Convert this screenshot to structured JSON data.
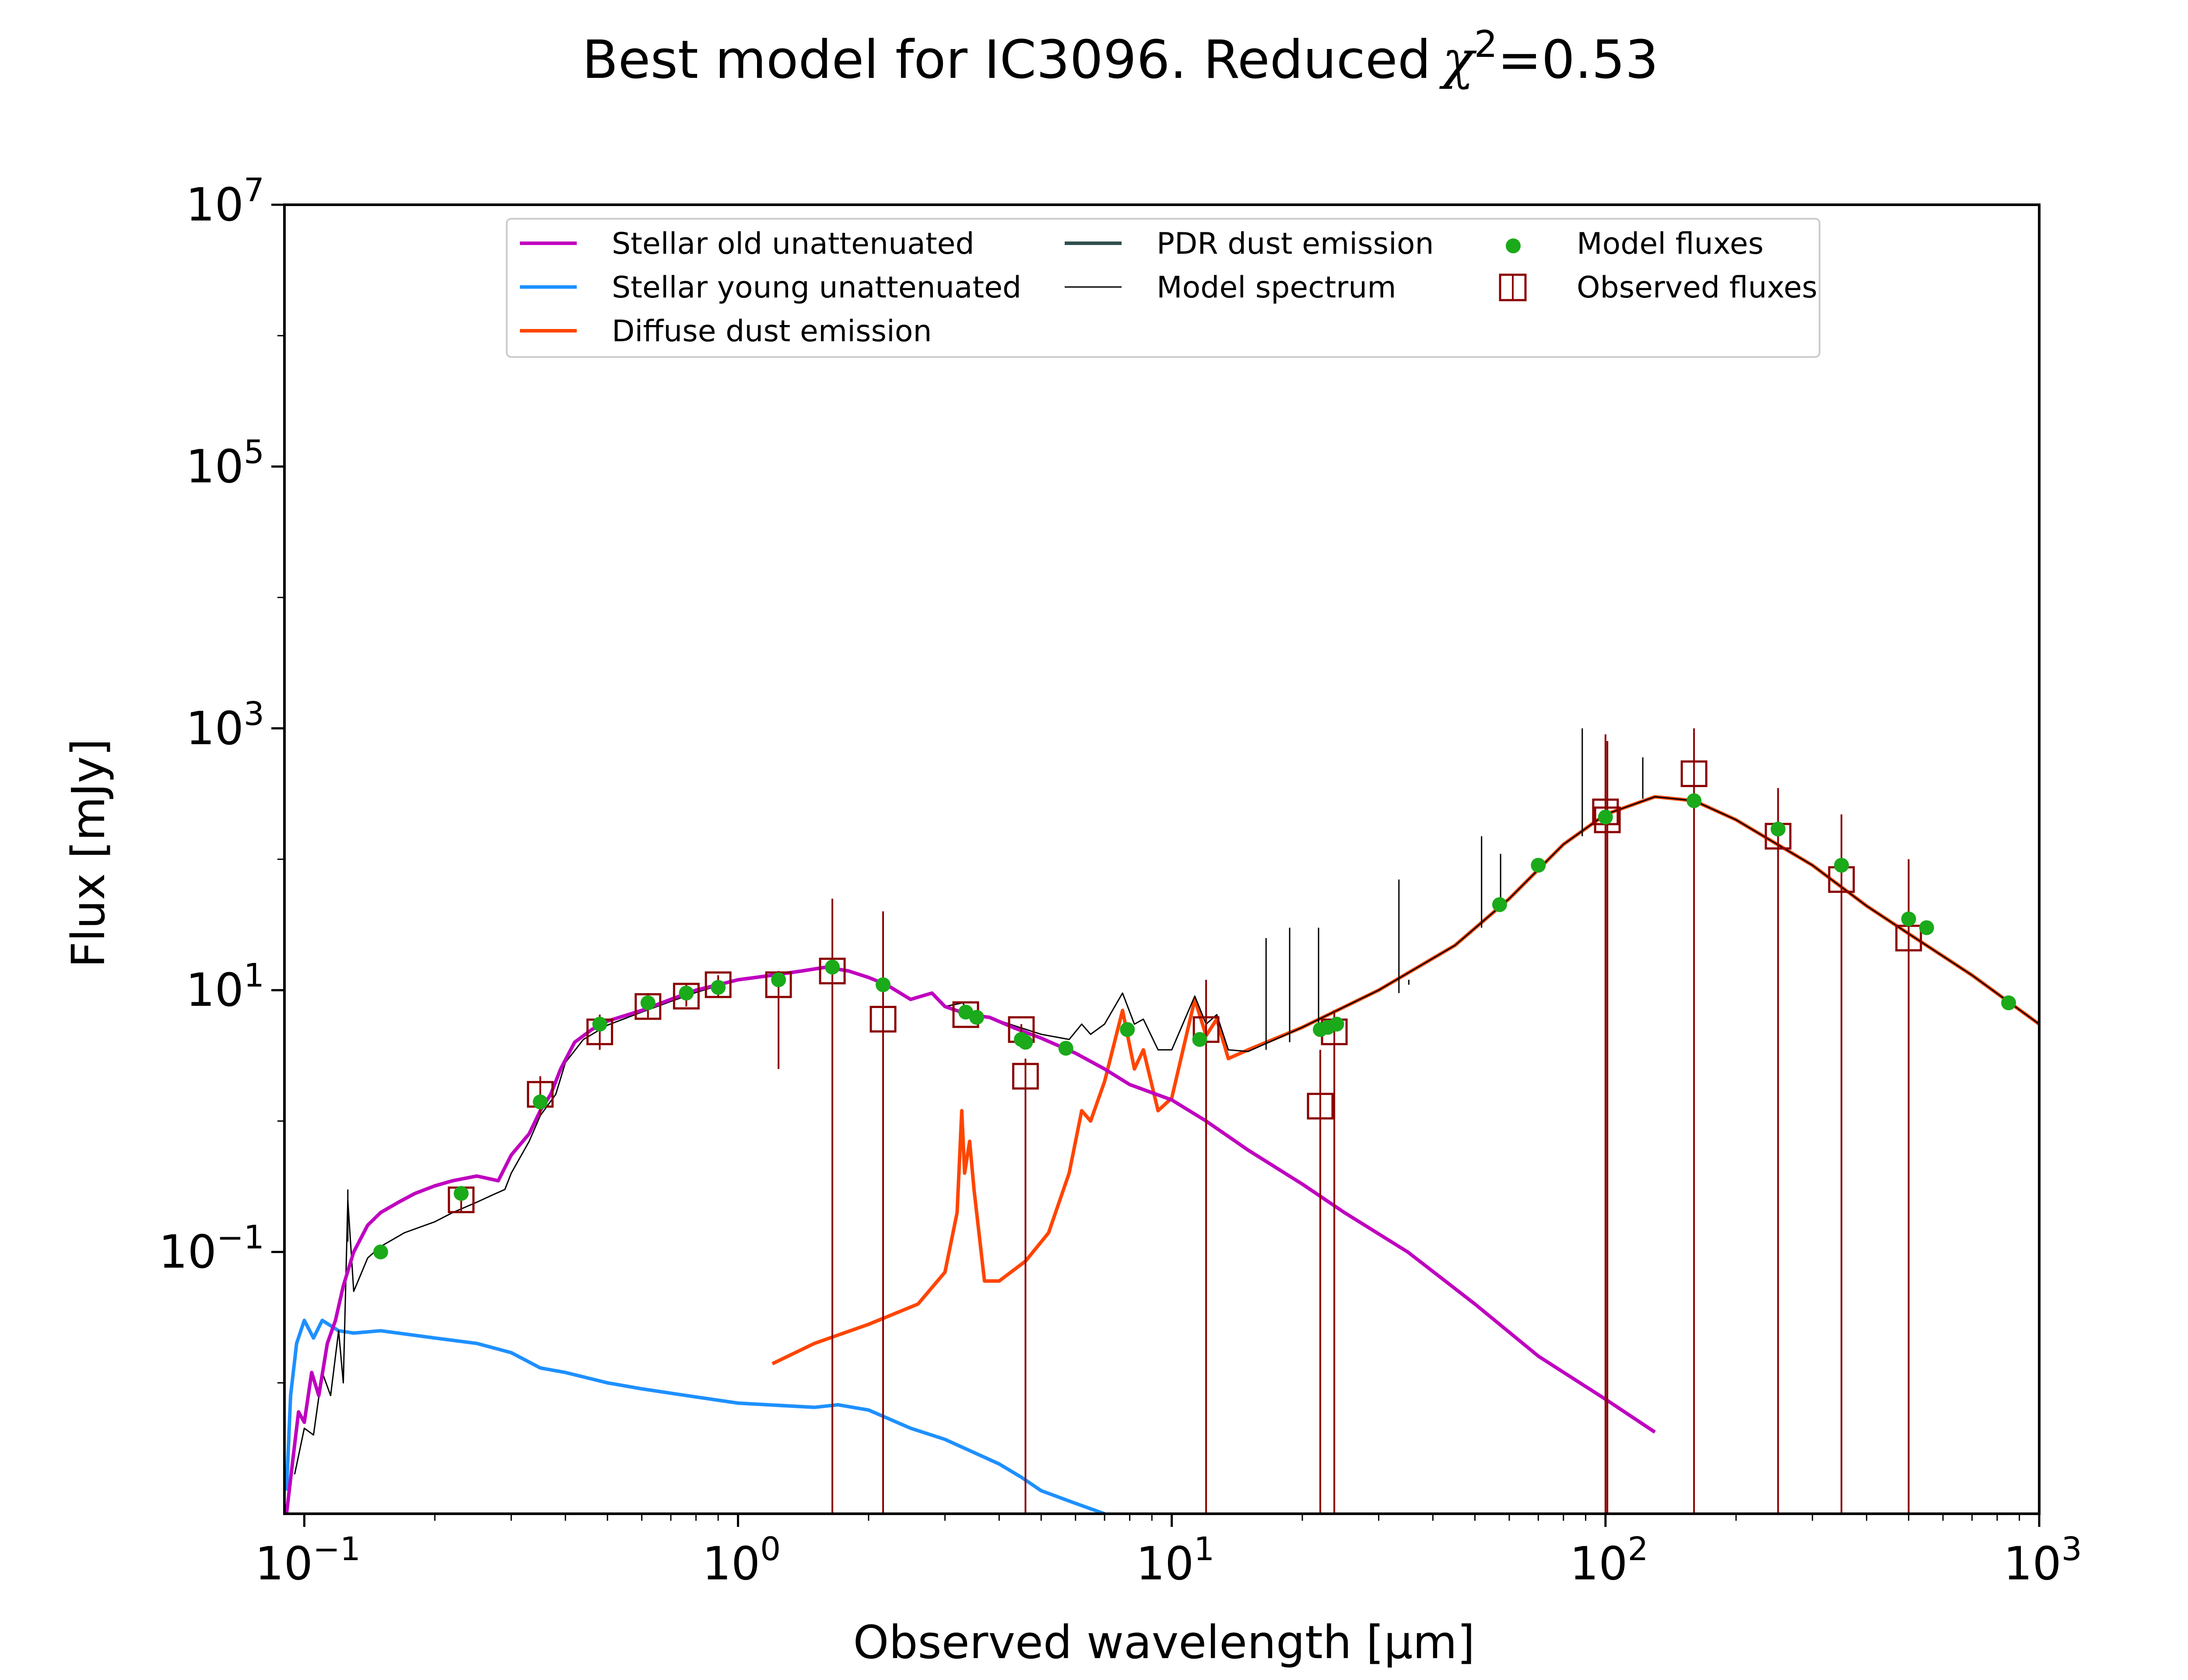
{
  "chart_data": {
    "type": "line",
    "title": "Best model for IC3096. Reduced",
    "title_chi": "χ",
    "title_sup": "2",
    "title_value": "=0.53",
    "xlabel": "Observed wavelength [μm]",
    "ylabel": "Flux [mJy]",
    "x_scale": "log",
    "y_scale": "log",
    "xlim": [
      0.09,
      1000
    ],
    "ylim": [
      0.001,
      10000000
    ],
    "grid": false,
    "legend_placement": "top-center",
    "x_ticks": [
      {
        "value": 0.1,
        "base": "10",
        "exp": "−1"
      },
      {
        "value": 1,
        "base": "10",
        "exp": "0"
      },
      {
        "value": 10,
        "base": "10",
        "exp": "1"
      },
      {
        "value": 100,
        "base": "10",
        "exp": "2"
      },
      {
        "value": 1000,
        "base": "10",
        "exp": "3"
      }
    ],
    "y_ticks": [
      {
        "value": 0.1,
        "base": "10",
        "exp": "−1"
      },
      {
        "value": 10,
        "base": "10",
        "exp": "1"
      },
      {
        "value": 1000,
        "base": "10",
        "exp": "3"
      },
      {
        "value": 100000,
        "base": "10",
        "exp": "5"
      },
      {
        "value": 10000000,
        "base": "10",
        "exp": "7"
      }
    ],
    "legend": {
      "columns": [
        [
          {
            "label": "Stellar old unattenuated",
            "kind": "line",
            "color": "#BF00BF"
          },
          {
            "label": "Stellar young unattenuated",
            "kind": "line",
            "color": "#1E90FF"
          },
          {
            "label": "Diffuse dust emission",
            "kind": "line",
            "color": "#FF4500"
          }
        ],
        [
          {
            "label": "PDR dust emission",
            "kind": "line",
            "color": "#2F4F4F"
          },
          {
            "label": "Model spectrum",
            "kind": "thinline",
            "color": "#000000"
          }
        ],
        [
          {
            "label": "Model fluxes",
            "kind": "dot",
            "color": "#1AAA1A"
          },
          {
            "label": "Observed fluxes",
            "kind": "square",
            "color": "#8B0000"
          }
        ]
      ]
    },
    "series": [
      {
        "name": "Stellar old unattenuated",
        "color": "#BF00BF",
        "width": 8,
        "points": [
          [
            0.091,
            0.001
          ],
          [
            0.094,
            0.0025
          ],
          [
            0.097,
            0.006
          ],
          [
            0.1,
            0.005
          ],
          [
            0.104,
            0.012
          ],
          [
            0.108,
            0.008
          ],
          [
            0.113,
            0.02
          ],
          [
            0.118,
            0.03
          ],
          [
            0.123,
            0.055
          ],
          [
            0.13,
            0.1
          ],
          [
            0.14,
            0.16
          ],
          [
            0.15,
            0.2
          ],
          [
            0.165,
            0.24
          ],
          [
            0.18,
            0.28
          ],
          [
            0.2,
            0.32
          ],
          [
            0.22,
            0.35
          ],
          [
            0.25,
            0.38
          ],
          [
            0.28,
            0.35
          ],
          [
            0.3,
            0.55
          ],
          [
            0.33,
            0.8
          ],
          [
            0.35,
            1.2
          ],
          [
            0.37,
            1.6
          ],
          [
            0.39,
            2.5
          ],
          [
            0.42,
            4.0
          ],
          [
            0.46,
            5.0
          ],
          [
            0.5,
            5.8
          ],
          [
            0.6,
            7.0
          ],
          [
            0.7,
            8.5
          ],
          [
            0.8,
            10
          ],
          [
            0.9,
            11
          ],
          [
            1.0,
            12
          ],
          [
            1.2,
            13
          ],
          [
            1.4,
            14
          ],
          [
            1.6,
            15
          ],
          [
            1.8,
            14
          ],
          [
            2.0,
            12.5
          ],
          [
            2.2,
            11
          ],
          [
            2.5,
            8.5
          ],
          [
            2.8,
            9.5
          ],
          [
            3.0,
            7.5
          ],
          [
            3.4,
            6.5
          ],
          [
            3.8,
            6.2
          ],
          [
            4.3,
            5.2
          ],
          [
            5.0,
            4.3
          ],
          [
            6.0,
            3.3
          ],
          [
            7.0,
            2.5
          ],
          [
            8.0,
            1.9
          ],
          [
            10,
            1.45
          ],
          [
            12,
            1.0
          ],
          [
            15,
            0.6
          ],
          [
            20,
            0.33
          ],
          [
            25,
            0.2
          ],
          [
            35,
            0.1
          ],
          [
            50,
            0.04
          ],
          [
            70,
            0.016
          ],
          [
            100,
            0.0075
          ],
          [
            130,
            0.0042
          ]
        ]
      },
      {
        "name": "Stellar young unattenuated",
        "color": "#1E90FF",
        "width": 8,
        "points": [
          [
            0.091,
            0.0015
          ],
          [
            0.093,
            0.008
          ],
          [
            0.096,
            0.02
          ],
          [
            0.1,
            0.03
          ],
          [
            0.105,
            0.022
          ],
          [
            0.11,
            0.03
          ],
          [
            0.12,
            0.025
          ],
          [
            0.13,
            0.024
          ],
          [
            0.15,
            0.025
          ],
          [
            0.2,
            0.022
          ],
          [
            0.25,
            0.02
          ],
          [
            0.3,
            0.017
          ],
          [
            0.35,
            0.013
          ],
          [
            0.4,
            0.012
          ],
          [
            0.5,
            0.01
          ],
          [
            0.6,
            0.009
          ],
          [
            0.8,
            0.0078
          ],
          [
            1.0,
            0.007
          ],
          [
            1.5,
            0.0065
          ],
          [
            1.7,
            0.0068
          ],
          [
            2.0,
            0.0062
          ],
          [
            2.5,
            0.0045
          ],
          [
            3.0,
            0.0037
          ],
          [
            4.0,
            0.0024
          ],
          [
            4.5,
            0.0019
          ],
          [
            5.0,
            0.0015
          ],
          [
            6.0,
            0.0012
          ],
          [
            7.0,
            0.001
          ]
        ]
      },
      {
        "name": "Diffuse dust emission",
        "color": "#FF4500",
        "width": 8,
        "points": [
          [
            1.2,
            0.014
          ],
          [
            1.5,
            0.02
          ],
          [
            2.0,
            0.028
          ],
          [
            2.6,
            0.04
          ],
          [
            3.0,
            0.07
          ],
          [
            3.2,
            0.2
          ],
          [
            3.28,
            1.2
          ],
          [
            3.33,
            0.4
          ],
          [
            3.42,
            0.7
          ],
          [
            3.5,
            0.3
          ],
          [
            3.7,
            0.06
          ],
          [
            4.0,
            0.06
          ],
          [
            4.6,
            0.085
          ],
          [
            5.2,
            0.14
          ],
          [
            5.8,
            0.4
          ],
          [
            6.2,
            1.2
          ],
          [
            6.5,
            1.0
          ],
          [
            7.0,
            2.0
          ],
          [
            7.7,
            7.0
          ],
          [
            8.2,
            2.5
          ],
          [
            8.6,
            3.5
          ],
          [
            9.3,
            1.2
          ],
          [
            10,
            1.5
          ],
          [
            11.3,
            8.5
          ],
          [
            12,
            4.5
          ],
          [
            12.7,
            6.0
          ],
          [
            13.5,
            3.0
          ],
          [
            15,
            3.5
          ],
          [
            20,
            5.2
          ],
          [
            30,
            10
          ],
          [
            45,
            22
          ],
          [
            60,
            50
          ],
          [
            80,
            130
          ],
          [
            100,
            220
          ],
          [
            130,
            300
          ],
          [
            160,
            280
          ],
          [
            200,
            200
          ],
          [
            300,
            90
          ],
          [
            400,
            44
          ],
          [
            500,
            27
          ],
          [
            700,
            13
          ],
          [
            1000,
            5.5
          ]
        ]
      },
      {
        "name": "Model spectrum",
        "color": "#000000",
        "width": 3,
        "points": [
          [
            0.095,
            0.002
          ],
          [
            0.1,
            0.0045
          ],
          [
            0.105,
            0.004
          ],
          [
            0.11,
            0.012
          ],
          [
            0.115,
            0.008
          ],
          [
            0.12,
            0.025
          ],
          [
            0.123,
            0.01
          ],
          [
            0.126,
            0.25
          ],
          [
            0.13,
            0.05
          ],
          [
            0.14,
            0.09
          ],
          [
            0.15,
            0.11
          ],
          [
            0.17,
            0.14
          ],
          [
            0.2,
            0.17
          ],
          [
            0.22,
            0.2
          ],
          [
            0.25,
            0.24
          ],
          [
            0.27,
            0.27
          ],
          [
            0.29,
            0.3
          ],
          [
            0.3,
            0.4
          ],
          [
            0.33,
            0.7
          ],
          [
            0.35,
            1.1
          ],
          [
            0.38,
            1.6
          ],
          [
            0.4,
            2.8
          ],
          [
            0.44,
            4.2
          ],
          [
            0.5,
            5.4
          ],
          [
            0.6,
            6.8
          ],
          [
            0.7,
            8.2
          ],
          [
            0.8,
            9.6
          ],
          [
            0.9,
            10.8
          ],
          [
            1.0,
            12
          ],
          [
            1.2,
            13
          ],
          [
            1.4,
            14
          ],
          [
            1.6,
            15
          ],
          [
            1.8,
            14
          ],
          [
            2.0,
            12.5
          ],
          [
            2.2,
            11
          ],
          [
            2.5,
            8.5
          ],
          [
            2.8,
            9.4
          ],
          [
            3.0,
            7.5
          ],
          [
            3.3,
            8.0
          ],
          [
            3.4,
            6.6
          ],
          [
            3.8,
            6.2
          ],
          [
            4.3,
            5.4
          ],
          [
            5.0,
            4.6
          ],
          [
            5.8,
            4.2
          ],
          [
            6.2,
            5.5
          ],
          [
            6.5,
            4.6
          ],
          [
            7.0,
            5.5
          ],
          [
            7.7,
            9.5
          ],
          [
            8.2,
            5.5
          ],
          [
            8.6,
            6.0
          ],
          [
            9.3,
            3.5
          ],
          [
            10,
            3.5
          ],
          [
            11.3,
            9.0
          ],
          [
            12,
            5.5
          ],
          [
            12.7,
            6.5
          ],
          [
            13.5,
            3.5
          ],
          [
            15,
            3.4
          ],
          [
            20,
            5.2
          ],
          [
            30,
            10
          ],
          [
            45,
            22
          ],
          [
            60,
            50
          ],
          [
            80,
            130
          ],
          [
            100,
            220
          ],
          [
            130,
            300
          ],
          [
            160,
            280
          ],
          [
            200,
            200
          ],
          [
            300,
            90
          ],
          [
            400,
            44
          ],
          [
            500,
            27
          ],
          [
            700,
            13
          ],
          [
            1000,
            5.5
          ]
        ]
      }
    ],
    "spectrum_spikes": [
      [
        0.126,
        0.12,
        0.3
      ],
      [
        16.5,
        3.5,
        25
      ],
      [
        18.7,
        4.0,
        30
      ],
      [
        21.8,
        4.7,
        30
      ],
      [
        33.4,
        9.5,
        70
      ],
      [
        35.2,
        11,
        12
      ],
      [
        51.8,
        30,
        150
      ],
      [
        57.3,
        45,
        110
      ],
      [
        88.4,
        150,
        1000
      ],
      [
        121.9,
        290,
        600
      ]
    ],
    "model_fluxes": [
      [
        0.15,
        0.1
      ],
      [
        0.23,
        0.28
      ],
      [
        0.35,
        1.4
      ],
      [
        0.48,
        5.5
      ],
      [
        0.62,
        8
      ],
      [
        0.76,
        9.5
      ],
      [
        0.9,
        10.5
      ],
      [
        1.24,
        12
      ],
      [
        1.65,
        15
      ],
      [
        2.16,
        11
      ],
      [
        3.35,
        6.8
      ],
      [
        3.55,
        6.2
      ],
      [
        4.5,
        4.2
      ],
      [
        4.6,
        4.0
      ],
      [
        5.7,
        3.6
      ],
      [
        7.9,
        5.0
      ],
      [
        11.6,
        4.2
      ],
      [
        22,
        5.0
      ],
      [
        22.9,
        5.2
      ],
      [
        24,
        5.5
      ],
      [
        57,
        45
      ],
      [
        70,
        90
      ],
      [
        100,
        210
      ],
      [
        160,
        280
      ],
      [
        250,
        170
      ],
      [
        350,
        90
      ],
      [
        500,
        35
      ],
      [
        550,
        30
      ],
      [
        850,
        8
      ]
    ],
    "observed_fluxes": [
      {
        "x": 0.23,
        "y": 0.25,
        "lo": 0.2,
        "hi": 0.3
      },
      {
        "x": 0.35,
        "y": 1.6,
        "lo": 1.1,
        "hi": 2.2
      },
      {
        "x": 0.48,
        "y": 4.8,
        "lo": 3.5,
        "hi": 6.5
      },
      {
        "x": 0.62,
        "y": 7.5,
        "lo": 6.0,
        "hi": 9.5
      },
      {
        "x": 0.76,
        "y": 9.0,
        "lo": 7.5,
        "hi": 11
      },
      {
        "x": 0.9,
        "y": 11,
        "lo": 9,
        "hi": 13
      },
      {
        "x": 1.24,
        "y": 11,
        "lo": 2.5,
        "hi": 14
      },
      {
        "x": 1.65,
        "y": 14,
        "lo": 0.001,
        "hi": 50
      },
      {
        "x": 2.16,
        "y": 6.0,
        "lo": 0.001,
        "hi": 40
      },
      {
        "x": 3.35,
        "y": 6.5,
        "lo": 6.0,
        "hi": 7.0
      },
      {
        "x": 4.5,
        "y": 5.0,
        "lo": 4.5,
        "hi": 5.5
      },
      {
        "x": 4.6,
        "y": 2.2,
        "lo": 0.001,
        "hi": 3.0
      },
      {
        "x": 12,
        "y": 5.0,
        "lo": 0.001,
        "hi": 12
      },
      {
        "x": 22,
        "y": 1.3,
        "lo": 0.001,
        "hi": 3.5
      },
      {
        "x": 23.7,
        "y": 4.8,
        "lo": 0.001,
        "hi": 7.0
      },
      {
        "x": 100,
        "y": 230,
        "lo": 0.001,
        "hi": 900
      },
      {
        "x": 101,
        "y": 200,
        "lo": 0.001,
        "hi": 800
      },
      {
        "x": 160,
        "y": 450,
        "lo": 0.001,
        "hi": 1000
      },
      {
        "x": 250,
        "y": 150,
        "lo": 0.001,
        "hi": 350
      },
      {
        "x": 350,
        "y": 70,
        "lo": 0.001,
        "hi": 220
      },
      {
        "x": 500,
        "y": 25,
        "lo": 0.001,
        "hi": 100
      }
    ]
  }
}
